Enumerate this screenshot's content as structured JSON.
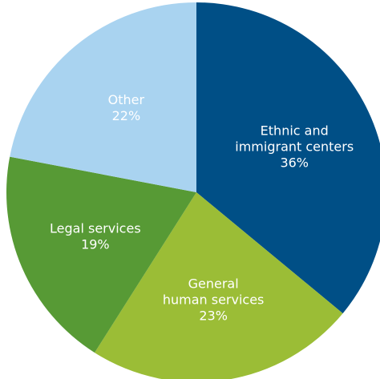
{
  "chart_data": {
    "type": "pie",
    "title": "",
    "slices": [
      {
        "label_lines": [
          "Ethnic and",
          "immigrant centers"
        ],
        "label": "Ethnic and immigrant centers",
        "value": 36,
        "value_label": "36%",
        "color": "#004f86"
      },
      {
        "label_lines": [
          "General",
          "human services"
        ],
        "label": "General human services",
        "value": 23,
        "value_label": "23%",
        "color": "#9bbd36"
      },
      {
        "label_lines": [
          "Legal services"
        ],
        "label": "Legal services",
        "value": 19,
        "value_label": "19%",
        "color": "#579a35"
      },
      {
        "label_lines": [
          "Other"
        ],
        "label": "Other",
        "value": 22,
        "value_label": "22%",
        "color": "#a9d3f0"
      }
    ]
  }
}
